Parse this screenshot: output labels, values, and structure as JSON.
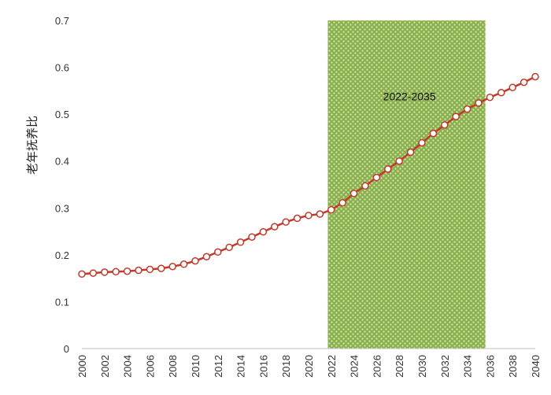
{
  "chart_data": {
    "type": "line",
    "title": "",
    "xlabel": "",
    "ylabel": "老年抚养比",
    "xlim": [
      2000,
      2040
    ],
    "ylim": [
      0,
      0.7
    ],
    "y_ticks": [
      0,
      0.1,
      0.2,
      0.3,
      0.4,
      0.5,
      0.6,
      0.7
    ],
    "y_tick_labels": [
      "0",
      "0.1",
      "0.2",
      "0.3",
      "0.4",
      "0.5",
      "0.6",
      "0.7"
    ],
    "x_ticks": [
      2000,
      2002,
      2004,
      2006,
      2008,
      2010,
      2012,
      2014,
      2016,
      2018,
      2020,
      2022,
      2024,
      2026,
      2028,
      2030,
      2032,
      2034,
      2036,
      2038,
      2040
    ],
    "x_tick_labels": [
      "2000",
      "2002",
      "2004",
      "2006",
      "2008",
      "2010",
      "2012",
      "2014",
      "2016",
      "2018",
      "2020",
      "2022",
      "2024",
      "2026",
      "2028",
      "2030",
      "2032",
      "2034",
      "2036",
      "2038",
      "2040"
    ],
    "grid": false,
    "colors": {
      "line": "#c0392b",
      "marker_fill": "#ffffff",
      "band": "#8ab04a"
    },
    "highlight_band": {
      "x_start": 2021.7,
      "x_end": 2035.6,
      "label": "2022-2035",
      "label_x": 2028.9,
      "label_y": 0.53
    },
    "series": [
      {
        "name": "老年抚养比",
        "x": [
          2000,
          2001,
          2002,
          2003,
          2004,
          2005,
          2006,
          2007,
          2008,
          2009,
          2010,
          2011,
          2012,
          2013,
          2014,
          2015,
          2016,
          2017,
          2018,
          2019,
          2020,
          2021,
          2022,
          2023,
          2024,
          2025,
          2026,
          2027,
          2028,
          2029,
          2030,
          2031,
          2032,
          2033,
          2034,
          2035,
          2036,
          2037,
          2038,
          2039,
          2040
        ],
        "values": [
          0.159,
          0.161,
          0.163,
          0.164,
          0.165,
          0.167,
          0.169,
          0.171,
          0.175,
          0.18,
          0.187,
          0.196,
          0.206,
          0.216,
          0.227,
          0.238,
          0.249,
          0.26,
          0.27,
          0.278,
          0.284,
          0.287,
          0.296,
          0.311,
          0.331,
          0.347,
          0.365,
          0.383,
          0.4,
          0.419,
          0.439,
          0.459,
          0.477,
          0.495,
          0.511,
          0.524,
          0.536,
          0.546,
          0.557,
          0.568,
          0.58
        ]
      }
    ]
  }
}
